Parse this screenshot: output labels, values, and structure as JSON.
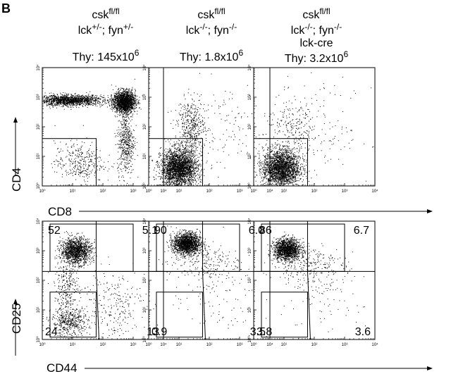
{
  "figure": {
    "panel_letter": "B",
    "x_axis_arrow_top": "CD8",
    "y_axis_arrow_top": "CD4",
    "x_axis_arrow_bottom": "CD44",
    "y_axis_arrow_bottom": "CD25"
  },
  "columns": [
    {
      "genotype": {
        "base": "csk",
        "sup": "fl/fl"
      },
      "line2": [
        {
          "t": "lck"
        },
        {
          "t": "+/-",
          "sup": true
        },
        {
          "t": "; fyn"
        },
        {
          "t": "+/-",
          "sup": true
        }
      ],
      "line3": "",
      "thy": {
        "prefix": "Thy: ",
        "mantissa": "145x10",
        "exp": "6"
      }
    },
    {
      "genotype": {
        "base": "csk",
        "sup": "fl/fl"
      },
      "line2": [
        {
          "t": "lck"
        },
        {
          "t": "-/-",
          "sup": true
        },
        {
          "t": "; fyn"
        },
        {
          "t": "-/-",
          "sup": true
        }
      ],
      "line3": "",
      "thy": {
        "prefix": "Thy: ",
        "mantissa": "1.8x10",
        "exp": "6"
      }
    },
    {
      "genotype": {
        "base": "csk",
        "sup": "fl/fl"
      },
      "line2": [
        {
          "t": "lck"
        },
        {
          "t": "-/-",
          "sup": true
        },
        {
          "t": "; fyn"
        },
        {
          "t": "-/-",
          "sup": true
        }
      ],
      "line3": "lck-cre",
      "thy": {
        "prefix": "Thy: ",
        "mantissa": "3.2x10",
        "exp": "6"
      }
    }
  ],
  "chart_data": [
    {
      "type": "scatter",
      "row": "top",
      "xlabel": "CD8",
      "ylabel": "CD4",
      "x_scale": "log",
      "y_scale": "log",
      "xlim": [
        1,
        10000
      ],
      "ylim": [
        1,
        10000
      ],
      "tick_labels": [
        "10⁰",
        "10¹",
        "10²",
        "10³",
        "10⁴"
      ],
      "panels": [
        {
          "column": 0,
          "gate": {
            "x": [
              1,
              60
            ],
            "y": [
              1,
              40
            ]
          },
          "populations": [
            {
              "cx": 0.9,
              "cy": 2.9,
              "sx": 0.55,
              "sy": 0.09,
              "n": 1500
            },
            {
              "cx": 2.7,
              "cy": 2.85,
              "sx": 0.18,
              "sy": 0.18,
              "n": 1800
            },
            {
              "cx": 2.75,
              "cy": 1.5,
              "sx": 0.14,
              "sy": 0.55,
              "n": 500
            },
            {
              "cx": 1.2,
              "cy": 0.8,
              "sx": 0.4,
              "sy": 0.35,
              "n": 350
            }
          ]
        },
        {
          "column": 1,
          "gate": {
            "x": [
              1,
              60
            ],
            "y": [
              1,
              40
            ]
          },
          "populations": [
            {
              "cx": 1.0,
              "cy": 0.6,
              "sx": 0.3,
              "sy": 0.32,
              "n": 2600
            },
            {
              "cx": 1.4,
              "cy": 2.0,
              "sx": 0.22,
              "sy": 0.45,
              "n": 450
            },
            {
              "cx": 2.2,
              "cy": 2.0,
              "sx": 0.8,
              "sy": 0.8,
              "n": 130
            }
          ]
        },
        {
          "column": 2,
          "gate": {
            "x": [
              1,
              60
            ],
            "y": [
              1,
              40
            ]
          },
          "populations": [
            {
              "cx": 0.9,
              "cy": 0.6,
              "sx": 0.3,
              "sy": 0.32,
              "n": 2400
            },
            {
              "cx": 1.3,
              "cy": 1.9,
              "sx": 0.45,
              "sy": 0.55,
              "n": 250
            },
            {
              "cx": 2.3,
              "cy": 1.8,
              "sx": 0.8,
              "sy": 0.8,
              "n": 130
            }
          ]
        }
      ]
    },
    {
      "type": "scatter",
      "row": "bottom",
      "xlabel": "CD44",
      "ylabel": "CD25",
      "x_scale": "log",
      "y_scale": "log",
      "xlim": [
        1,
        10000
      ],
      "ylim": [
        1,
        10000
      ],
      "tick_labels": [
        "10⁰",
        "10¹",
        "10²",
        "10³",
        "10⁴"
      ],
      "panels": [
        {
          "column": 0,
          "quadrants": {
            "y_split": 200,
            "x_split_upper": 60,
            "ul": "52",
            "ur": "5.1",
            "ll": "24",
            "lr": "13"
          },
          "gates": [
            {
              "x": [
                1.8,
                1000
              ],
              "y": [
                200,
                8000
              ]
            },
            {
              "x": [
                1.8,
                60
              ],
              "y": [
                1.2,
                40
              ]
            }
          ],
          "populations": [
            {
              "cx": 1.1,
              "cy": 3.0,
              "sx": 0.25,
              "sy": 0.22,
              "n": 1400
            },
            {
              "cx": 0.9,
              "cy": 0.6,
              "sx": 0.3,
              "sy": 0.25,
              "n": 500
            },
            {
              "cx": 0.8,
              "cy": 1.8,
              "sx": 0.2,
              "sy": 0.4,
              "n": 250
            },
            {
              "cx": 2.3,
              "cy": 1.2,
              "sx": 0.55,
              "sy": 0.6,
              "n": 260
            }
          ]
        },
        {
          "column": 1,
          "quadrants": {
            "y_split": 200,
            "x_split_upper": 60,
            "ul": "90",
            "ur": "6.0",
            "ll": "0.9",
            "lr": "3.5"
          },
          "gates": [
            {
              "x": [
                1.8,
                1000
              ],
              "y": [
                200,
                8000
              ]
            },
            {
              "x": [
                1.8,
                60
              ],
              "y": [
                1.2,
                40
              ]
            }
          ],
          "populations": [
            {
              "cx": 1.25,
              "cy": 3.25,
              "sx": 0.22,
              "sy": 0.18,
              "n": 1700
            },
            {
              "cx": 1.8,
              "cy": 2.6,
              "sx": 0.6,
              "sy": 0.35,
              "n": 250
            },
            {
              "cx": 2.2,
              "cy": 1.3,
              "sx": 0.7,
              "sy": 0.7,
              "n": 90
            }
          ]
        },
        {
          "column": 2,
          "quadrants": {
            "y_split": 200,
            "x_split_upper": 60,
            "ul": "86",
            "ur": "6.7",
            "ll": "3.8",
            "lr": "3.6"
          },
          "gates": [
            {
              "x": [
                1.8,
                1000
              ],
              "y": [
                200,
                8000
              ]
            },
            {
              "x": [
                1.8,
                60
              ],
              "y": [
                1.2,
                40
              ]
            }
          ],
          "populations": [
            {
              "cx": 1.1,
              "cy": 3.05,
              "sx": 0.22,
              "sy": 0.18,
              "n": 1500
            },
            {
              "cx": 1.8,
              "cy": 2.5,
              "sx": 0.6,
              "sy": 0.35,
              "n": 250
            },
            {
              "cx": 2.2,
              "cy": 1.3,
              "sx": 0.7,
              "sy": 0.7,
              "n": 100
            }
          ]
        }
      ]
    }
  ]
}
